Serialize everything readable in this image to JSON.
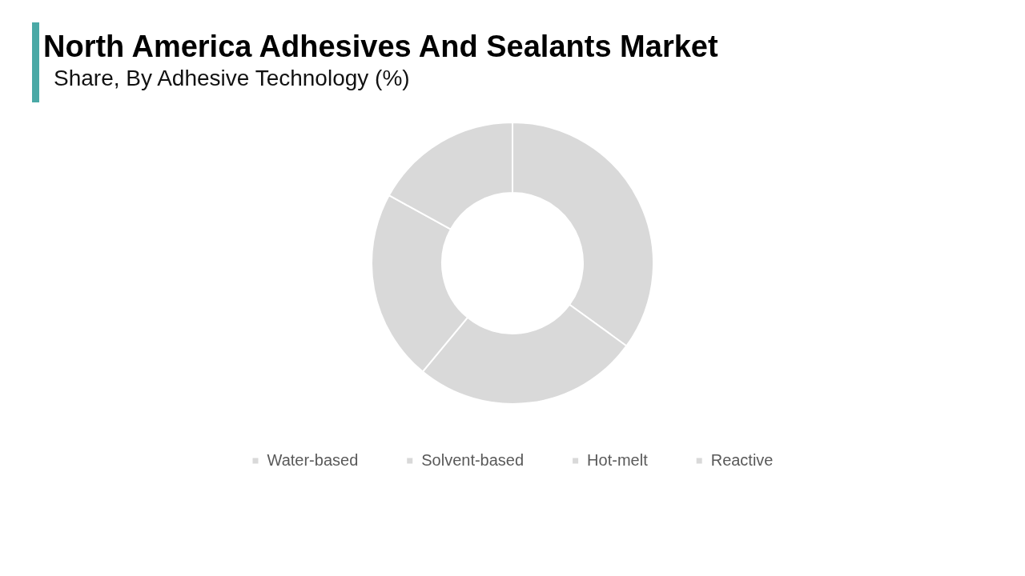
{
  "chart_data": {
    "type": "donut",
    "title": "North America Adhesives And Sealants Market",
    "subtitle": "Share, By Adhesive Technology (%)",
    "categories": [
      "Water-based",
      "Solvent-based",
      "Hot-melt",
      "Reactive"
    ],
    "values": [
      35,
      26,
      22,
      17
    ],
    "colors": [
      "#d9d9d9",
      "#d9d9d9",
      "#d9d9d9",
      "#d9d9d9"
    ],
    "legend": "bottom"
  }
}
